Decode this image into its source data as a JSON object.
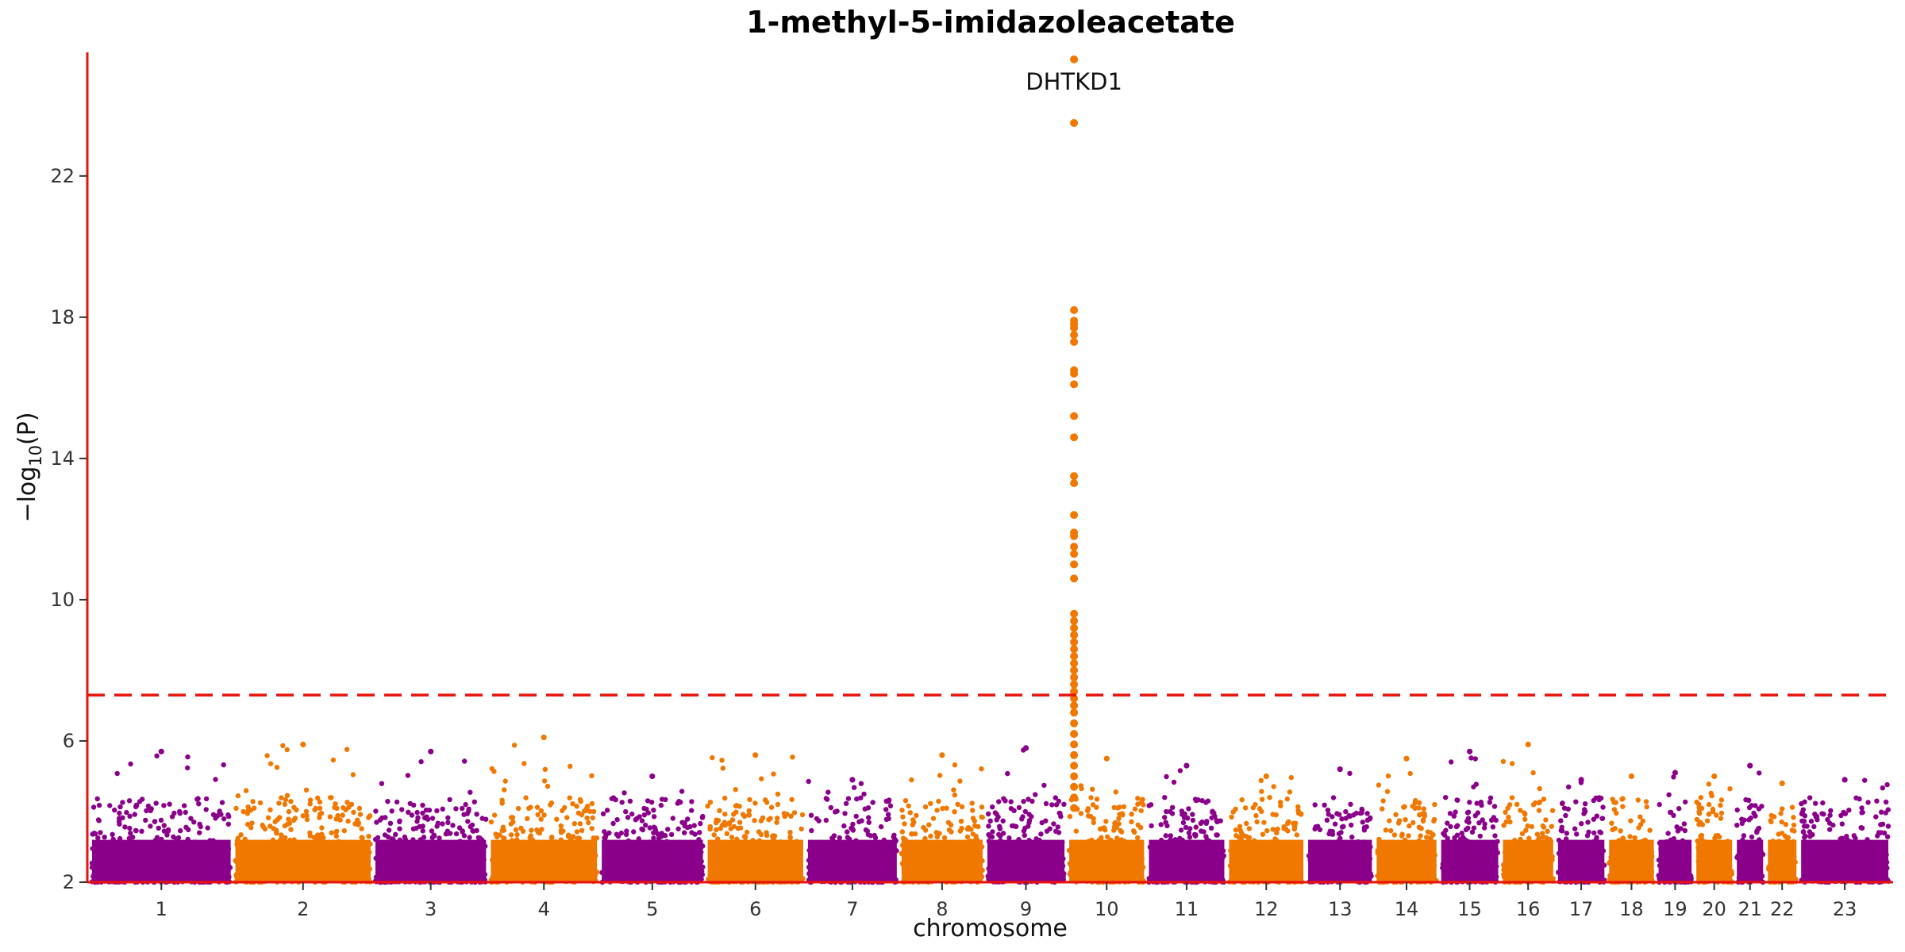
{
  "chart_data": {
    "type": "scatter",
    "title": "1-methyl-5-imidazoleacetate",
    "xlabel": "chromosome",
    "ylabel": "−log10(P)",
    "ylim": [
      2,
      25.5
    ],
    "yticks": [
      2,
      6,
      10,
      14,
      18,
      22
    ],
    "threshold": 7.3,
    "colors": {
      "odd": "#8b008b",
      "even": "#f07800",
      "threshold": "#e8120c",
      "axis": "#e8120c"
    },
    "chromosomes": [
      {
        "label": "1",
        "length": 248,
        "peak": 5.7
      },
      {
        "label": "2",
        "length": 242,
        "peak": 5.9
      },
      {
        "label": "3",
        "length": 198,
        "peak": 5.7
      },
      {
        "label": "4",
        "length": 190,
        "peak": 6.1
      },
      {
        "label": "5",
        "length": 181,
        "peak": 5.0
      },
      {
        "label": "6",
        "length": 171,
        "peak": 5.6
      },
      {
        "label": "7",
        "length": 159,
        "peak": 4.9
      },
      {
        "label": "8",
        "length": 145,
        "peak": 5.6
      },
      {
        "label": "9",
        "length": 138,
        "peak": 5.8
      },
      {
        "label": "10",
        "length": 134,
        "peak": 5.5
      },
      {
        "label": "11",
        "length": 135,
        "peak": 5.3
      },
      {
        "label": "12",
        "length": 133,
        "peak": 5.0
      },
      {
        "label": "13",
        "length": 114,
        "peak": 5.2
      },
      {
        "label": "14",
        "length": 107,
        "peak": 5.5
      },
      {
        "label": "15",
        "length": 102,
        "peak": 5.7
      },
      {
        "label": "16",
        "length": 90,
        "peak": 5.9
      },
      {
        "label": "17",
        "length": 83,
        "peak": 4.9
      },
      {
        "label": "18",
        "length": 80,
        "peak": 5.0
      },
      {
        "label": "19",
        "length": 59,
        "peak": 5.1
      },
      {
        "label": "20",
        "length": 64,
        "peak": 5.0
      },
      {
        "label": "21",
        "length": 47,
        "peak": 5.3
      },
      {
        "label": "22",
        "length": 51,
        "peak": 4.8
      },
      {
        "label": "23",
        "length": 156,
        "peak": 4.9
      }
    ],
    "highlight": {
      "chromosome": "10",
      "gene": "DHTKD1",
      "values": [
        25.3,
        23.5,
        18.2,
        17.9,
        17.8,
        17.7,
        17.5,
        17.3,
        16.5,
        16.4,
        16.1,
        15.2,
        14.6,
        13.5,
        13.3,
        12.4,
        11.9,
        11.8,
        11.5,
        11.3,
        11.0,
        10.6,
        9.6,
        9.4,
        9.2,
        9.0,
        8.8,
        8.6,
        8.4,
        8.2,
        8.0,
        7.8,
        7.6,
        7.4,
        7.2,
        7.0,
        6.8,
        6.5,
        6.2,
        5.9,
        5.6,
        5.3,
        5.0,
        4.7,
        4.4,
        4.1
      ]
    }
  }
}
